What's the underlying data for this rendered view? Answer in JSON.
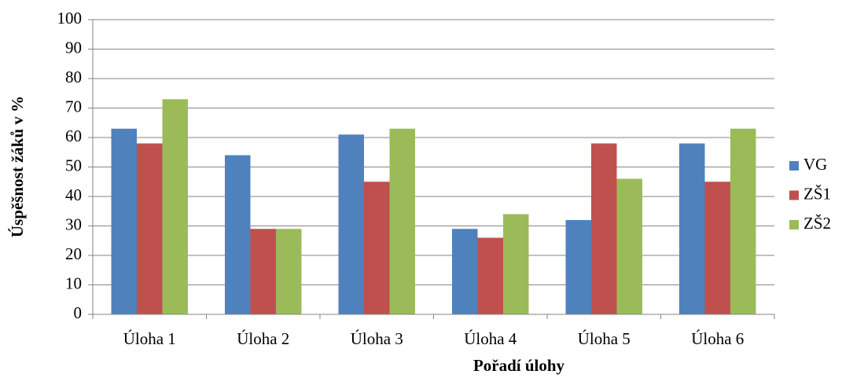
{
  "chart_data": {
    "type": "bar",
    "categories": [
      "Úloha 1",
      "Úloha 2",
      "Úloha 3",
      "Úloha 4",
      "Úloha 5",
      "Úloha 6"
    ],
    "series": [
      {
        "name": "VG",
        "color": "#4f81bd",
        "values": [
          63,
          54,
          61,
          29,
          32,
          58
        ]
      },
      {
        "name": "ZŠ1",
        "color": "#c0504d",
        "values": [
          58,
          29,
          45,
          26,
          58,
          45
        ]
      },
      {
        "name": "ZŠ2",
        "color": "#9bbb59",
        "values": [
          73,
          29,
          63,
          34,
          46,
          63
        ]
      }
    ],
    "xlabel": "Pořadí úlohy",
    "ylabel": "Úspěšnost žáků v %",
    "ylim": [
      0,
      100
    ],
    "yticks": [
      0,
      10,
      20,
      30,
      40,
      50,
      60,
      70,
      80,
      90,
      100
    ],
    "grid": true,
    "legend": "right"
  }
}
